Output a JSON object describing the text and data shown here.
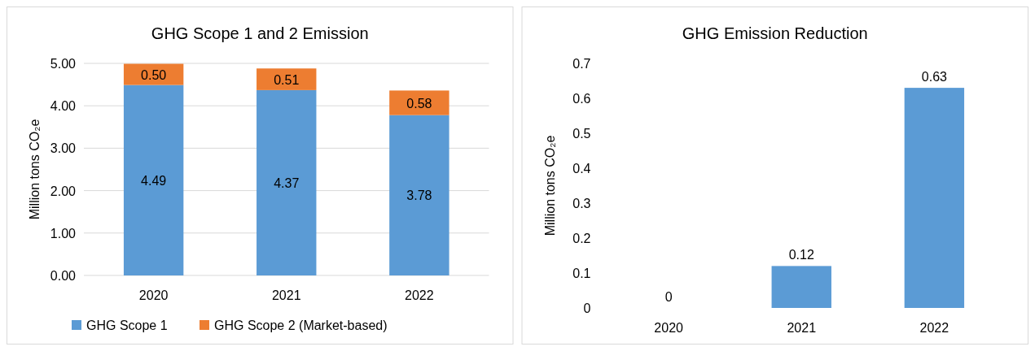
{
  "chart_data": [
    {
      "type": "bar",
      "title": "GHG Scope 1 and 2 Emission",
      "ylabel": "Million tons CO₂e",
      "categories": [
        "2020",
        "2021",
        "2022"
      ],
      "stacked": true,
      "series": [
        {
          "name": "GHG Scope 1",
          "color": "#5b9bd5",
          "values": [
            4.49,
            4.37,
            3.78
          ],
          "value_labels": [
            "4.49",
            "4.37",
            "3.78"
          ]
        },
        {
          "name": "GHG Scope 2 (Market-based)",
          "color": "#ed7d31",
          "values": [
            0.5,
            0.51,
            0.58
          ],
          "value_labels": [
            "0.50",
            "0.51",
            "0.58"
          ]
        }
      ],
      "ylim": [
        0,
        5
      ],
      "yticks": [
        {
          "value": 0,
          "label": "0.00"
        },
        {
          "value": 1,
          "label": "1.00"
        },
        {
          "value": 2,
          "label": "2.00"
        },
        {
          "value": 3,
          "label": "3.00"
        },
        {
          "value": 4,
          "label": "4.00"
        },
        {
          "value": 5,
          "label": "5.00"
        }
      ],
      "grid": true,
      "legend": "bottom"
    },
    {
      "type": "bar",
      "title": "GHG Emission Reduction",
      "ylabel": "Million tons CO₂e",
      "categories": [
        "2020",
        "2021",
        "2022"
      ],
      "values": [
        0,
        0.12,
        0.63
      ],
      "color": "#5b9bd5",
      "data_labels": true,
      "ylim": [
        0,
        0.7
      ],
      "yticks": [
        0,
        0.1,
        0.2,
        0.3,
        0.4,
        0.5,
        0.6,
        0.7
      ],
      "grid": false
    }
  ]
}
